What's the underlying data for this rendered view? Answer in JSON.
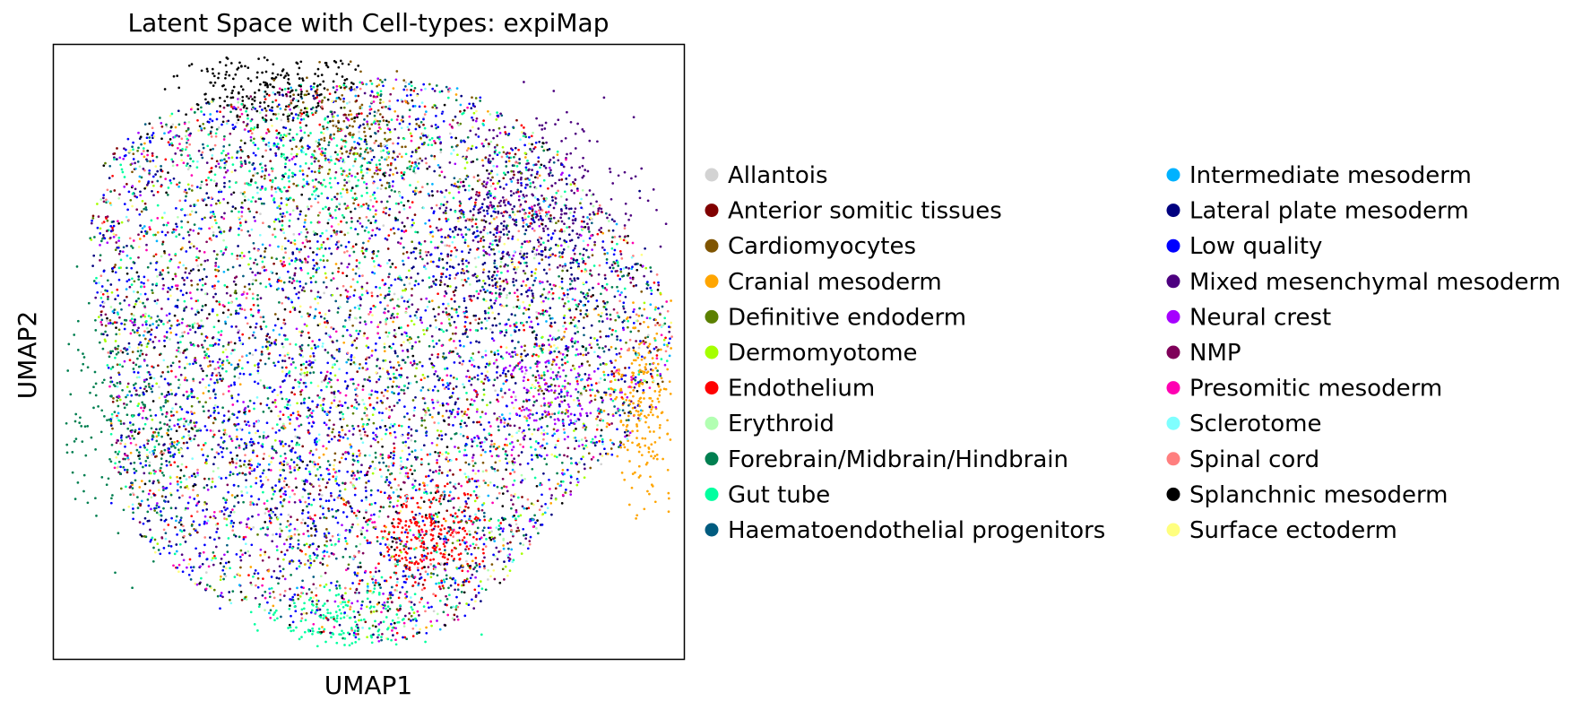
{
  "chart_data": {
    "type": "scatter",
    "title": "Latent Space with Cell-types: expiMap",
    "xlabel": "UMAP1",
    "ylabel": "UMAP2",
    "grid": false,
    "legend_position": "right",
    "ticks": false,
    "categories": [
      {
        "name": "Allantois",
        "color": "#d3d3d3",
        "weight": 1
      },
      {
        "name": "Anterior somitic tissues",
        "color": "#800000",
        "weight": 2
      },
      {
        "name": "Cardiomyocytes",
        "color": "#7f5400",
        "weight": 2
      },
      {
        "name": "Cranial mesoderm",
        "color": "#ffa500",
        "weight": 2
      },
      {
        "name": "Definitive endoderm",
        "color": "#5b8000",
        "weight": 2
      },
      {
        "name": "Dermomyotome",
        "color": "#a5ff00",
        "weight": 2
      },
      {
        "name": "Endothelium",
        "color": "#ff0000",
        "weight": 3
      },
      {
        "name": "Erythroid",
        "color": "#b2ffb2",
        "weight": 2
      },
      {
        "name": "Forebrain/Midbrain/Hindbrain",
        "color": "#007f50",
        "weight": 6
      },
      {
        "name": "Gut tube",
        "color": "#00ff9f",
        "weight": 5
      },
      {
        "name": "Haematoendothelial progenitors",
        "color": "#005b7f",
        "weight": 3
      },
      {
        "name": "Intermediate mesoderm",
        "color": "#00b2ff",
        "weight": 2
      },
      {
        "name": "Lateral plate mesoderm",
        "color": "#00007f",
        "weight": 4
      },
      {
        "name": "Low quality",
        "color": "#0000ff",
        "weight": 8
      },
      {
        "name": "Mixed mesenchymal mesoderm",
        "color": "#4c007f",
        "weight": 4
      },
      {
        "name": "Neural crest",
        "color": "#a600ff",
        "weight": 3
      },
      {
        "name": "NMP",
        "color": "#7f0059",
        "weight": 3
      },
      {
        "name": "Presomitic mesoderm",
        "color": "#ff00b2",
        "weight": 3
      },
      {
        "name": "Sclerotome",
        "color": "#7fffff",
        "weight": 2
      },
      {
        "name": "Spinal cord",
        "color": "#ff7f7f",
        "weight": 3
      },
      {
        "name": "Splanchnic mesoderm",
        "color": "#000000",
        "weight": 3
      },
      {
        "name": "Surface ectoderm",
        "color": "#ffff7f",
        "weight": 2
      }
    ],
    "clusters": [
      {
        "category": "Splanchnic mesoderm",
        "center": [
          0.35,
          0.93
        ],
        "spread": [
          0.07,
          0.04
        ],
        "count": 260
      },
      {
        "category": "Cardiomyocytes",
        "center": [
          0.47,
          0.86
        ],
        "spread": [
          0.05,
          0.05
        ],
        "count": 140
      },
      {
        "category": "Gut tube",
        "center": [
          0.4,
          0.8
        ],
        "spread": [
          0.07,
          0.05
        ],
        "count": 140
      },
      {
        "category": "Mixed mesenchymal mesoderm",
        "center": [
          0.76,
          0.74
        ],
        "spread": [
          0.08,
          0.07
        ],
        "count": 320
      },
      {
        "category": "Lateral plate mesoderm",
        "center": [
          0.72,
          0.64
        ],
        "spread": [
          0.08,
          0.09
        ],
        "count": 220
      },
      {
        "category": "Cranial mesoderm",
        "center": [
          0.94,
          0.41
        ],
        "spread": [
          0.03,
          0.07
        ],
        "count": 240
      },
      {
        "category": "Neural crest",
        "center": [
          0.79,
          0.43
        ],
        "spread": [
          0.05,
          0.05
        ],
        "count": 150
      },
      {
        "category": "Endothelium",
        "center": [
          0.59,
          0.2
        ],
        "spread": [
          0.04,
          0.05
        ],
        "count": 260
      },
      {
        "category": "Gut tube",
        "center": [
          0.45,
          0.06
        ],
        "spread": [
          0.06,
          0.03
        ],
        "count": 160
      },
      {
        "category": "Forebrain/Midbrain/Hindbrain",
        "center": [
          0.12,
          0.4
        ],
        "spread": [
          0.07,
          0.09
        ],
        "count": 260
      },
      {
        "category": "Low quality",
        "center": [
          0.35,
          0.35
        ],
        "spread": [
          0.1,
          0.1
        ],
        "count": 220
      }
    ],
    "background_count": 7400
  }
}
